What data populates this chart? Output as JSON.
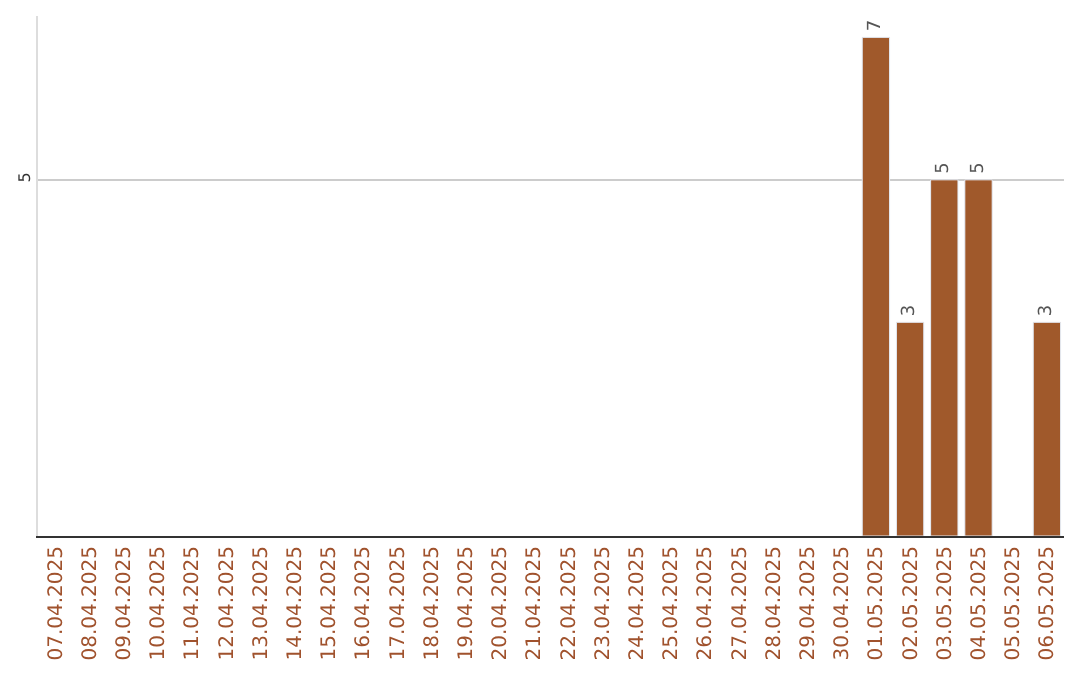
{
  "chart_data": {
    "type": "bar",
    "categories": [
      "07.04.2025",
      "08.04.2025",
      "09.04.2025",
      "10.04.2025",
      "11.04.2025",
      "12.04.2025",
      "13.04.2025",
      "14.04.2025",
      "15.04.2025",
      "16.04.2025",
      "17.04.2025",
      "18.04.2025",
      "19.04.2025",
      "20.04.2025",
      "21.04.2025",
      "22.04.2025",
      "23.04.2025",
      "24.04.2025",
      "25.04.2025",
      "26.04.2025",
      "27.04.2025",
      "28.04.2025",
      "29.04.2025",
      "30.04.2025",
      "01.05.2025",
      "02.05.2025",
      "03.05.2025",
      "04.05.2025",
      "05.05.2025",
      "06.05.2025"
    ],
    "values": [
      null,
      null,
      null,
      null,
      null,
      null,
      null,
      null,
      null,
      null,
      null,
      null,
      null,
      null,
      null,
      null,
      null,
      null,
      null,
      null,
      null,
      null,
      null,
      null,
      7,
      3,
      5,
      5,
      null,
      3
    ],
    "color": "#a0592b",
    "ylim": [
      0,
      7.3
    ],
    "yticks": [
      5
    ],
    "grid": "y",
    "data_labels": true
  }
}
